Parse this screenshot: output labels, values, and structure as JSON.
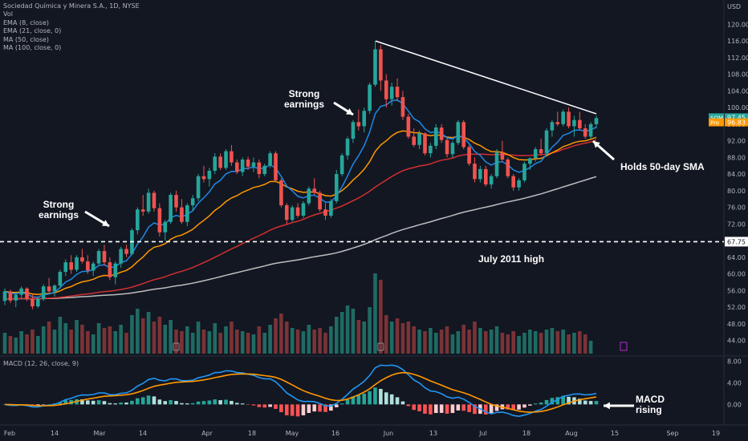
{
  "chart_data": {
    "type": "candlestick",
    "title": "Sociedad Química y Minera S.A., 1D, NYSE",
    "currency": "USD",
    "legend": [
      "Vol",
      "EMA (8, close)",
      "EMA (21, close, 0)",
      "MA (50, close)",
      "MA (100, close, 0)"
    ],
    "price_axis": {
      "min": 42,
      "max": 122,
      "ticks": [
        44,
        48,
        52,
        56,
        60,
        64,
        68,
        72,
        76,
        80,
        84,
        88,
        92,
        96,
        100,
        104,
        108,
        112,
        116,
        120
      ],
      "tick_labels": [
        "44.00",
        "48.00",
        "52.00",
        "56.00",
        "60.00",
        "64.00",
        "68.00",
        "72.00",
        "76.00",
        "80.00",
        "84.00",
        "88.00",
        "92.00",
        "96.00",
        "100.00",
        "104.00",
        "108.00",
        "112.00",
        "116.00",
        "120.00"
      ]
    },
    "x_axis": {
      "labels": [
        "Feb",
        "14",
        "Mar",
        "14",
        "Apr",
        "18",
        "May",
        "16",
        "Jun",
        "13",
        "Jul",
        "18",
        "Aug",
        "15",
        "Sep",
        "19"
      ]
    },
    "candles": [
      [
        53.5,
        56.5,
        52.5,
        55.8
      ],
      [
        55.8,
        56.2,
        53,
        53.6
      ],
      [
        53.6,
        55.5,
        52,
        55
      ],
      [
        55,
        57,
        54,
        56.5
      ],
      [
        56.5,
        56.8,
        53.5,
        54
      ],
      [
        54,
        55,
        51.5,
        52.2
      ],
      [
        52.2,
        54.5,
        51.8,
        54
      ],
      [
        54,
        57.5,
        53.5,
        57
      ],
      [
        57,
        59,
        55.5,
        55.8
      ],
      [
        55.8,
        57.5,
        54.5,
        57.2
      ],
      [
        57.2,
        61,
        56.5,
        60.5
      ],
      [
        60.5,
        63.5,
        59.5,
        62.8
      ],
      [
        62.8,
        64.5,
        60,
        61
      ],
      [
        61,
        64.5,
        60.5,
        64
      ],
      [
        64,
        66,
        62.5,
        63
      ],
      [
        63,
        64.5,
        60,
        60.8
      ],
      [
        60.8,
        63,
        59.5,
        62.5
      ],
      [
        62.5,
        66,
        62,
        65.5
      ],
      [
        65.5,
        67,
        62,
        62.8
      ],
      [
        62.8,
        64,
        58.5,
        59.2
      ],
      [
        59.2,
        63,
        57.5,
        62.5
      ],
      [
        62.5,
        66.5,
        61.5,
        66
      ],
      [
        66,
        67,
        64,
        64.8
      ],
      [
        64.8,
        71,
        64.5,
        70.5
      ],
      [
        70.5,
        76,
        69.5,
        75.5
      ],
      [
        75.5,
        79,
        74,
        75
      ],
      [
        75,
        80.5,
        74.5,
        79.5
      ],
      [
        79.5,
        80,
        75,
        75.8
      ],
      [
        75.8,
        77,
        69,
        70
      ],
      [
        70,
        73,
        68,
        72.5
      ],
      [
        72.5,
        79.5,
        72,
        79
      ],
      [
        79,
        80,
        75,
        76
      ],
      [
        76,
        78,
        72,
        72.5
      ],
      [
        72.5,
        77,
        71.5,
        76.5
      ],
      [
        76.5,
        79,
        75,
        78.2
      ],
      [
        78.2,
        84,
        77.5,
        83.5
      ],
      [
        83.5,
        86,
        82,
        82.8
      ],
      [
        82.8,
        85.5,
        81,
        84.8
      ],
      [
        84.8,
        89,
        84,
        88.2
      ],
      [
        88.2,
        89,
        85,
        85.5
      ],
      [
        85.5,
        90,
        85,
        89.5
      ],
      [
        89.5,
        91,
        86,
        86.8
      ],
      [
        86.8,
        87.5,
        84,
        84.5
      ],
      [
        84.5,
        88,
        83.5,
        87.5
      ],
      [
        87.5,
        88.2,
        85,
        85.8
      ],
      [
        85.8,
        88,
        84.5,
        86.8
      ],
      [
        86.8,
        87.5,
        83,
        84
      ],
      [
        84,
        86.5,
        83.5,
        86
      ],
      [
        86,
        89.5,
        85.5,
        89
      ],
      [
        89,
        89.5,
        82,
        82.5
      ],
      [
        82.5,
        83,
        76,
        76.5
      ],
      [
        76.5,
        77,
        72,
        73
      ],
      [
        73,
        76.5,
        72.5,
        76
      ],
      [
        76,
        77,
        73.5,
        74
      ],
      [
        74,
        77.5,
        73.5,
        77
      ],
      [
        77,
        81,
        76.5,
        80.5
      ],
      [
        80.5,
        83,
        79,
        79.5
      ],
      [
        79.5,
        80,
        75,
        75.5
      ],
      [
        75.5,
        77,
        73,
        74
      ],
      [
        74,
        78,
        73.5,
        77.5
      ],
      [
        77.5,
        85,
        77,
        84
      ],
      [
        84,
        89,
        83.5,
        88.5
      ],
      [
        88.5,
        93,
        87.5,
        92.5
      ],
      [
        92.5,
        97,
        91.5,
        96.5
      ],
      [
        96.5,
        99.5,
        94.5,
        95.5
      ],
      [
        95.5,
        100,
        94,
        99.2
      ],
      [
        99.2,
        106,
        98.5,
        105.5
      ],
      [
        105.5,
        116,
        105,
        114
      ],
      [
        114,
        115,
        104,
        106.5
      ],
      [
        106.5,
        108,
        100,
        102
      ],
      [
        102,
        106,
        100.5,
        105
      ],
      [
        105,
        107,
        101.5,
        102.5
      ],
      [
        102.5,
        104,
        97,
        97.8
      ],
      [
        97.8,
        98.5,
        92.5,
        93
      ],
      [
        93,
        95,
        90.5,
        91
      ],
      [
        91,
        94.5,
        90,
        93.8
      ],
      [
        93.8,
        94,
        88.5,
        89
      ],
      [
        89,
        91.5,
        88,
        90.8
      ],
      [
        90.8,
        96,
        90,
        95.2
      ],
      [
        95.2,
        96,
        91.5,
        92.2
      ],
      [
        92.2,
        92.5,
        88,
        88.8
      ],
      [
        88.8,
        92,
        88,
        91.5
      ],
      [
        91.5,
        97,
        91,
        96.5
      ],
      [
        96.5,
        97,
        90,
        90.5
      ],
      [
        90.5,
        91,
        86,
        86.5
      ],
      [
        86.5,
        88,
        82,
        82.8
      ],
      [
        82.8,
        86,
        82,
        85.2
      ],
      [
        85.2,
        86,
        81,
        81.5
      ],
      [
        81.5,
        84,
        80.5,
        83.5
      ],
      [
        83.5,
        90,
        83,
        89.2
      ],
      [
        89.2,
        92,
        87,
        87.5
      ],
      [
        87.5,
        88,
        83,
        83.5
      ],
      [
        83.5,
        84,
        80,
        80.8
      ],
      [
        80.8,
        83,
        80,
        82.5
      ],
      [
        82.5,
        87,
        82,
        86.5
      ],
      [
        86.5,
        88,
        85,
        87.8
      ],
      [
        87.8,
        90.5,
        87,
        90
      ],
      [
        90,
        92.5,
        88.5,
        89
      ],
      [
        89,
        95,
        88.5,
        94.5
      ],
      [
        94.5,
        97,
        93,
        96.5
      ],
      [
        96.5,
        99,
        95.5,
        96
      ],
      [
        96,
        99.5,
        95.5,
        99
      ],
      [
        99,
        100,
        95,
        95.5
      ],
      [
        95.5,
        98,
        93,
        97
      ],
      [
        97,
        99,
        94.5,
        95
      ],
      [
        95,
        96,
        92.5,
        93
      ],
      [
        93,
        96.5,
        92.5,
        96
      ],
      [
        96,
        98,
        95,
        97.45
      ]
    ],
    "volume": [
      26,
      22,
      20,
      28,
      24,
      30,
      22,
      34,
      40,
      30,
      46,
      38,
      30,
      42,
      36,
      28,
      24,
      38,
      32,
      34,
      28,
      36,
      26,
      48,
      56,
      44,
      52,
      40,
      46,
      36,
      42,
      30,
      28,
      34,
      26,
      40,
      30,
      28,
      38,
      26,
      34,
      40,
      30,
      28,
      26,
      24,
      34,
      26,
      36,
      44,
      50,
      40,
      32,
      30,
      28,
      36,
      30,
      32,
      26,
      34,
      46,
      52,
      60,
      56,
      42,
      40,
      58,
      100,
      92,
      48,
      40,
      44,
      38,
      40,
      34,
      30,
      28,
      32,
      26,
      30,
      34,
      24,
      28,
      36,
      30,
      40,
      32,
      28,
      30,
      34,
      26,
      24,
      28,
      22,
      26,
      30,
      28,
      26,
      30,
      32,
      28,
      30,
      24,
      26,
      28,
      24,
      16
    ],
    "volume_axis_max": 100,
    "ema8_color": "#1e88e5",
    "ema21_color": "#ff9800",
    "ma50_color": "#d32f2f",
    "ma100_color": "#bdbdbd",
    "up_color": "#26a69a",
    "down_color": "#ef5350",
    "price_tags": [
      {
        "label": "SQM",
        "value": "97.45",
        "color": "#26a69a"
      },
      {
        "label": "Pre",
        "value": "96.83",
        "color": "#ff9800"
      }
    ],
    "horizontal_level": {
      "value": 67.75,
      "label": "67.75"
    },
    "trendline": {
      "from_price": 116,
      "to_price": 98.5
    },
    "macd": {
      "label": "MACD (12, 26, close, 9)",
      "ticks": [
        0,
        4,
        8
      ],
      "tick_labels": [
        "0.00",
        "4.00",
        "8.00"
      ],
      "min": -3.5,
      "max": 8.5
    },
    "annotations": [
      {
        "line1": "Strong",
        "line2": "earnings"
      },
      {
        "line1": "Strong",
        "line2": "earnings"
      },
      {
        "text": "Holds 50-day SMA"
      },
      {
        "text": "July 2011 high"
      },
      {
        "line1": "MACD",
        "line2": "rising"
      }
    ]
  }
}
